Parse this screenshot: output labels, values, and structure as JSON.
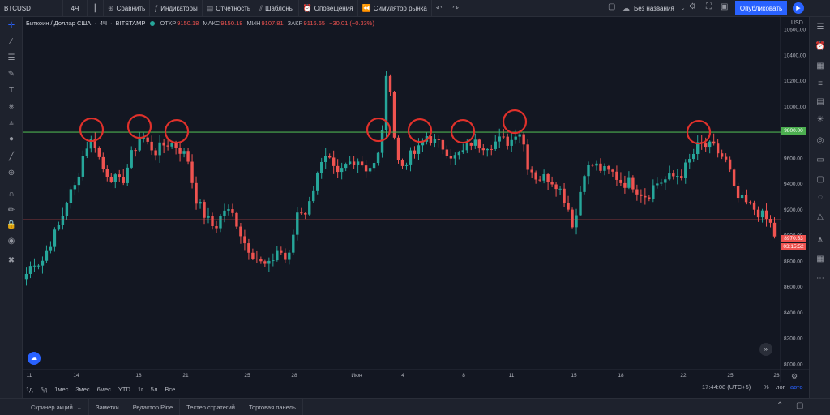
{
  "toolbar": {
    "symbol": "BTCUSD",
    "interval": "4Ч",
    "compare": "Сравнить",
    "indicators": "Индикаторы",
    "reports": "Отчётность",
    "templates": "Шаблоны",
    "alerts": "Оповещения",
    "simulator": "Симулятор рынка",
    "layout_name": "Без названия",
    "publish": "Опубликовать"
  },
  "legend": {
    "title": "Биткоин / Доллар США",
    "interval": "4Ч",
    "exchange": "BITSTAMP",
    "open_label": "ОТКР",
    "open": "9150.18",
    "high_label": "МАКС",
    "high": "9150.18",
    "low_label": "МИН",
    "low": "9107.81",
    "close_label": "ЗАКР",
    "close": "9116.65",
    "change": "−30.01 (−0.33%)"
  },
  "price_axis": {
    "currency": "USD",
    "ticks": [
      "10600.00",
      "10400.00",
      "10200.00",
      "10000.00",
      "9800.00",
      "9600.00",
      "9400.00",
      "9200.00",
      "9000.00",
      "8800.00",
      "8600.00",
      "8400.00",
      "8200.00",
      "8000.00"
    ],
    "green_line_label": "9800.00",
    "last_price_label": "8970.53",
    "countdown": "03:15:52"
  },
  "time_axis": {
    "ticks": [
      "11",
      "14",
      "18",
      "21",
      "25",
      "28",
      "Июн",
      "4",
      "8",
      "11",
      "15",
      "18",
      "22",
      "25",
      "28"
    ]
  },
  "ranges": [
    "1д",
    "5д",
    "1мес",
    "3мес",
    "6мес",
    "YTD",
    "1г",
    "5л",
    "Все"
  ],
  "clock": "17:44:08 (UTC+5)",
  "scale_opts": {
    "percent": "%",
    "log": "лог",
    "auto": "авто"
  },
  "bottom_tabs": [
    "Скринер акций",
    "Заметки",
    "Редактор Pine",
    "Тестер стратегий",
    "Торговая панель"
  ],
  "colors": {
    "up": "#26a69a",
    "down": "#ef5350",
    "resistance": "#4caf50",
    "support": "#ef5350",
    "circle": "#e0312b",
    "accent": "#2962ff"
  },
  "chart_data": {
    "type": "candlestick",
    "y_range": [
      7950,
      10650
    ],
    "resistance_level": 9800,
    "support_level": 9120,
    "last_price": 8970.53,
    "circled_touches_x_labels": [
      "14",
      "18",
      "21",
      "Июн",
      "4",
      "8",
      "11",
      "22"
    ],
    "path": [
      [
        0,
        8700
      ],
      [
        6,
        8800
      ],
      [
        12,
        8780
      ],
      [
        20,
        8950
      ],
      [
        28,
        9100
      ],
      [
        34,
        9300
      ],
      [
        40,
        9380
      ],
      [
        48,
        9680
      ],
      [
        55,
        9750
      ],
      [
        62,
        9520
      ],
      [
        70,
        9450
      ],
      [
        78,
        9400
      ],
      [
        86,
        9620
      ],
      [
        94,
        9780
      ],
      [
        100,
        9700
      ],
      [
        106,
        9650
      ],
      [
        112,
        9700
      ],
      [
        118,
        9720
      ],
      [
        124,
        9680
      ],
      [
        132,
        9600
      ],
      [
        138,
        9300
      ],
      [
        146,
        9150
      ],
      [
        154,
        9050
      ],
      [
        162,
        9200
      ],
      [
        170,
        9150
      ],
      [
        178,
        8950
      ],
      [
        186,
        8850
      ],
      [
        192,
        8780
      ],
      [
        198,
        8750
      ],
      [
        206,
        8900
      ],
      [
        214,
        8780
      ],
      [
        222,
        9200
      ],
      [
        230,
        9180
      ],
      [
        238,
        9500
      ],
      [
        246,
        9600
      ],
      [
        254,
        9450
      ],
      [
        262,
        9550
      ],
      [
        270,
        9600
      ],
      [
        278,
        9520
      ],
      [
        286,
        9550
      ],
      [
        290,
        9700
      ],
      [
        294,
        10200
      ],
      [
        298,
        10150
      ],
      [
        302,
        9650
      ],
      [
        306,
        9520
      ],
      [
        312,
        9600
      ],
      [
        320,
        9650
      ],
      [
        328,
        9780
      ],
      [
        334,
        9720
      ],
      [
        342,
        9680
      ],
      [
        350,
        9600
      ],
      [
        358,
        9650
      ],
      [
        364,
        9720
      ],
      [
        372,
        9700
      ],
      [
        380,
        9710
      ],
      [
        388,
        9740
      ],
      [
        396,
        9720
      ],
      [
        402,
        9840
      ],
      [
        406,
        9750
      ],
      [
        410,
        9550
      ],
      [
        418,
        9440
      ],
      [
        426,
        9450
      ],
      [
        434,
        9400
      ],
      [
        442,
        9250
      ],
      [
        448,
        9050
      ],
      [
        456,
        9500
      ],
      [
        464,
        9550
      ],
      [
        472,
        9500
      ],
      [
        480,
        9480
      ],
      [
        488,
        9400
      ],
      [
        494,
        9420
      ],
      [
        500,
        9350
      ],
      [
        508,
        9300
      ],
      [
        514,
        9400
      ],
      [
        520,
        9420
      ],
      [
        528,
        9450
      ],
      [
        536,
        9480
      ],
      [
        544,
        9600
      ],
      [
        550,
        9700
      ],
      [
        556,
        9690
      ],
      [
        562,
        9680
      ],
      [
        568,
        9620
      ],
      [
        574,
        9550
      ],
      [
        580,
        9300
      ],
      [
        588,
        9250
      ],
      [
        596,
        9200
      ],
      [
        602,
        9150
      ],
      [
        608,
        9100
      ],
      [
        612,
        9000
      ]
    ]
  }
}
